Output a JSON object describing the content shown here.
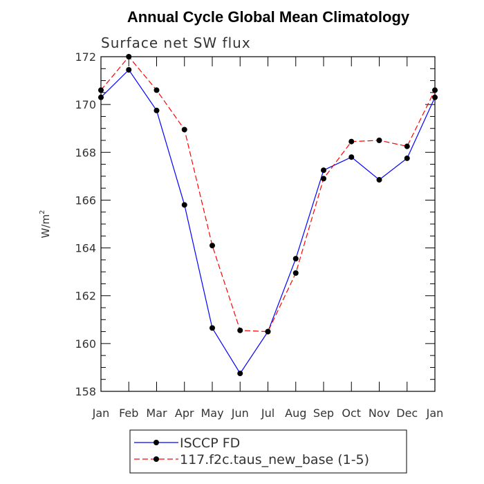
{
  "chart_data": {
    "type": "line",
    "title": "Annual Cycle Global Mean Climatology",
    "subtitle": "Surface net SW flux",
    "ylabel": "W/m",
    "ylabel_sup": "2",
    "categories": [
      "Jan",
      "Feb",
      "Mar",
      "Apr",
      "May",
      "Jun",
      "Jul",
      "Aug",
      "Sep",
      "Oct",
      "Nov",
      "Dec",
      "Jan"
    ],
    "ylim": [
      158,
      172
    ],
    "yticks": [
      158,
      160,
      162,
      164,
      166,
      168,
      170,
      172
    ],
    "series": [
      {
        "name": "ISCCP FD",
        "color": "#0000ff",
        "dashed": false,
        "values": [
          170.3,
          171.45,
          169.75,
          165.8,
          160.65,
          158.75,
          160.5,
          163.55,
          167.25,
          167.8,
          166.85,
          167.75,
          170.3
        ]
      },
      {
        "name": "117.f2c.taus_new_base (1-5)",
        "color": "#ff0000",
        "dashed": true,
        "values": [
          170.6,
          172.0,
          170.6,
          168.95,
          164.1,
          160.55,
          160.5,
          162.95,
          166.9,
          168.45,
          168.5,
          168.25,
          170.6
        ]
      }
    ],
    "grid": false,
    "legend": "bottom"
  }
}
